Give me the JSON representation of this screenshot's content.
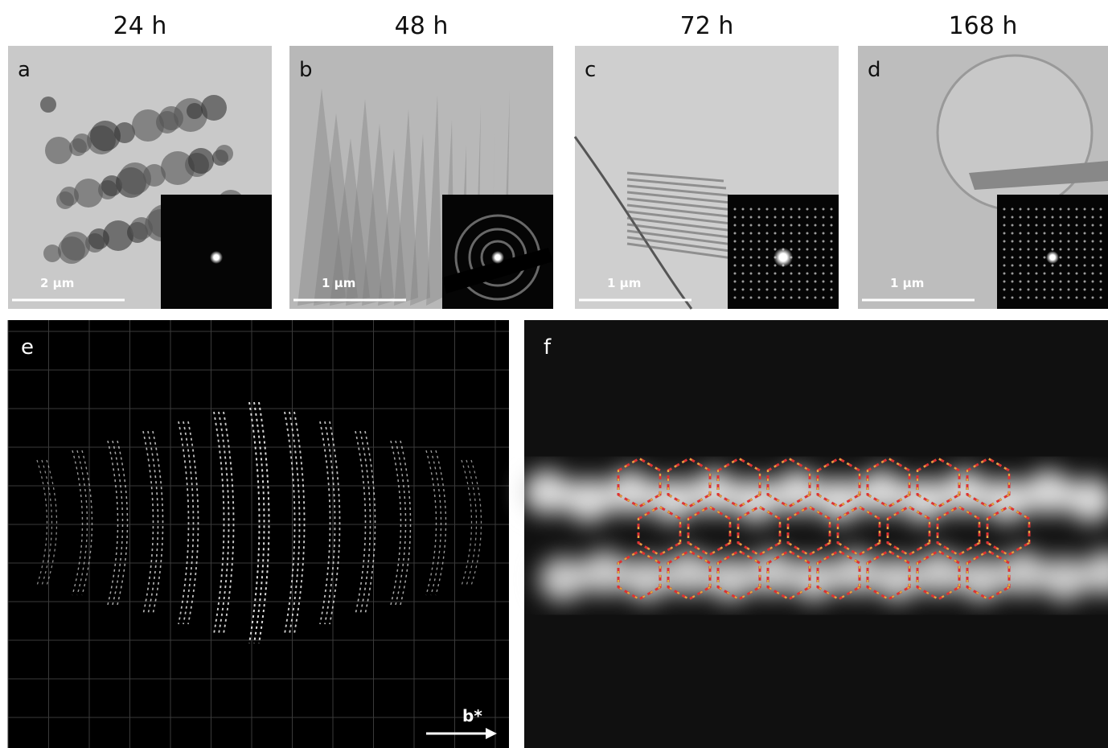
{
  "panels": [
    {
      "time": "24 h",
      "label": "a",
      "scale_bar": "2 µm"
    },
    {
      "time": "48 h",
      "label": "b",
      "scale_bar": "1 µm"
    },
    {
      "time": "72 h",
      "label": "c",
      "scale_bar": "1 µm"
    },
    {
      "time": "168 h",
      "label": "d",
      "scale_bar": "1 µm"
    }
  ],
  "panel_e": {
    "label": "e",
    "axis_label": "b*"
  },
  "panel_f": {
    "label": "f"
  }
}
